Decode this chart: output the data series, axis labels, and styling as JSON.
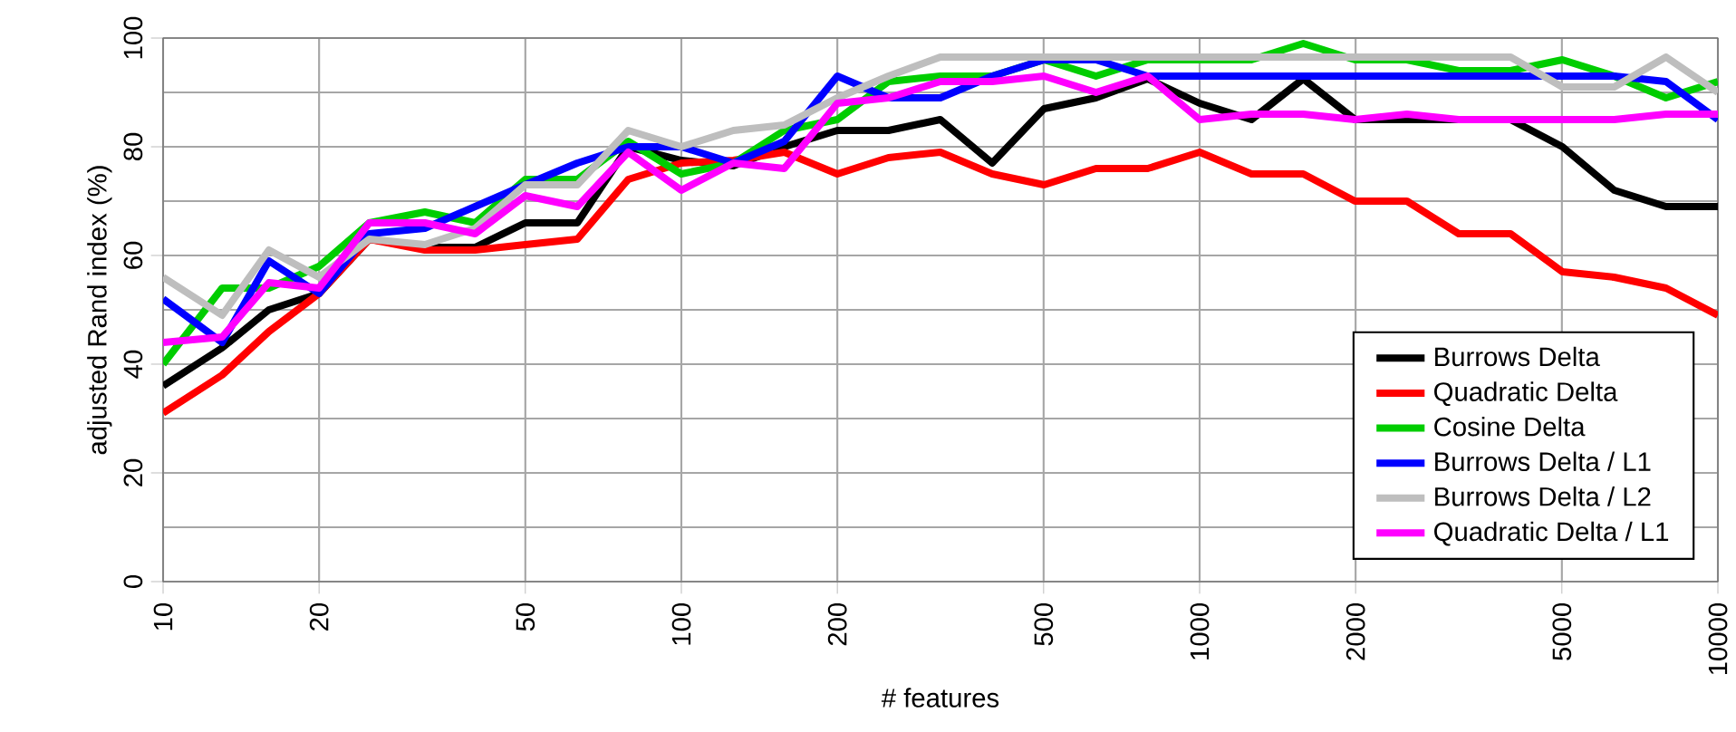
{
  "chart_data": {
    "type": "line",
    "xlabel": "# features",
    "ylabel": "adjusted Rand index (%)",
    "log": "x",
    "grid": true,
    "legend": "bottom right",
    "marker": "none",
    "line_style": "solid",
    "xlim": [
      10,
      10000
    ],
    "ylim": [
      0,
      100
    ],
    "xticks": [
      10,
      20,
      50,
      100,
      200,
      500,
      1000,
      2000,
      5000,
      10000
    ],
    "yticks": [
      0,
      20,
      40,
      60,
      80,
      100
    ],
    "x": [
      10,
      13,
      16,
      20,
      25,
      32,
      40,
      50,
      63,
      79,
      100,
      126,
      158,
      200,
      251,
      316,
      398,
      501,
      631,
      794,
      1000,
      1259,
      1585,
      1995,
      2512,
      3162,
      3981,
      5012,
      6310,
      7943,
      10000
    ],
    "series": [
      {
        "name": "Burrows Delta",
        "color": "#000000",
        "values": [
          36,
          43,
          50,
          53,
          63,
          61.5,
          61.5,
          66,
          66,
          80,
          77.5,
          76.5,
          80,
          83,
          83,
          85,
          77,
          87,
          89,
          92.5,
          88,
          85,
          92.5,
          85,
          85,
          85,
          85,
          80,
          72,
          69,
          69
        ]
      },
      {
        "name": "Quadratic Delta",
        "color": "#ff0000",
        "values": [
          31,
          38,
          46,
          53,
          63,
          61,
          61,
          62,
          63,
          74,
          77,
          77.5,
          79,
          75,
          78,
          79,
          75,
          73,
          76,
          76,
          79,
          75,
          75,
          70,
          70,
          64,
          64,
          57,
          56,
          54,
          49
        ]
      },
      {
        "name": "Cosine Delta",
        "color": "#00cd00",
        "values": [
          40,
          54,
          54,
          58,
          66,
          68,
          66,
          74,
          74,
          81,
          75,
          77,
          83,
          85,
          92,
          93,
          93,
          96,
          93,
          96,
          96,
          96,
          99,
          96,
          96,
          94,
          94,
          96,
          93,
          89,
          92
        ]
      },
      {
        "name": "Burrows Delta / L1",
        "color": "#0000ff",
        "values": [
          52,
          44,
          59,
          53,
          64,
          65,
          69,
          73,
          77,
          80,
          80,
          77,
          81,
          93,
          89,
          89,
          93,
          96,
          96,
          93,
          93,
          93,
          93,
          93,
          93,
          93,
          93,
          93,
          93,
          92,
          85
        ]
      },
      {
        "name": "Burrows Delta / L2",
        "color": "#bebebe",
        "values": [
          56,
          49,
          61,
          56,
          63,
          62,
          65,
          73,
          73,
          83,
          80,
          83,
          84,
          89,
          93,
          96.5,
          96.5,
          96.5,
          96.5,
          96.5,
          96.5,
          96.5,
          96.5,
          96.5,
          96.5,
          96.5,
          96.5,
          91,
          91,
          96.5,
          90
        ]
      },
      {
        "name": "Quadratic Delta / L1",
        "color": "#ff00ff",
        "values": [
          44,
          45,
          55,
          54,
          66,
          66,
          64,
          71,
          69,
          79,
          72,
          77,
          76,
          88,
          89,
          92,
          92,
          93,
          90,
          93,
          85,
          86,
          86,
          85,
          86,
          85,
          85,
          85,
          85,
          86,
          86
        ]
      }
    ]
  }
}
